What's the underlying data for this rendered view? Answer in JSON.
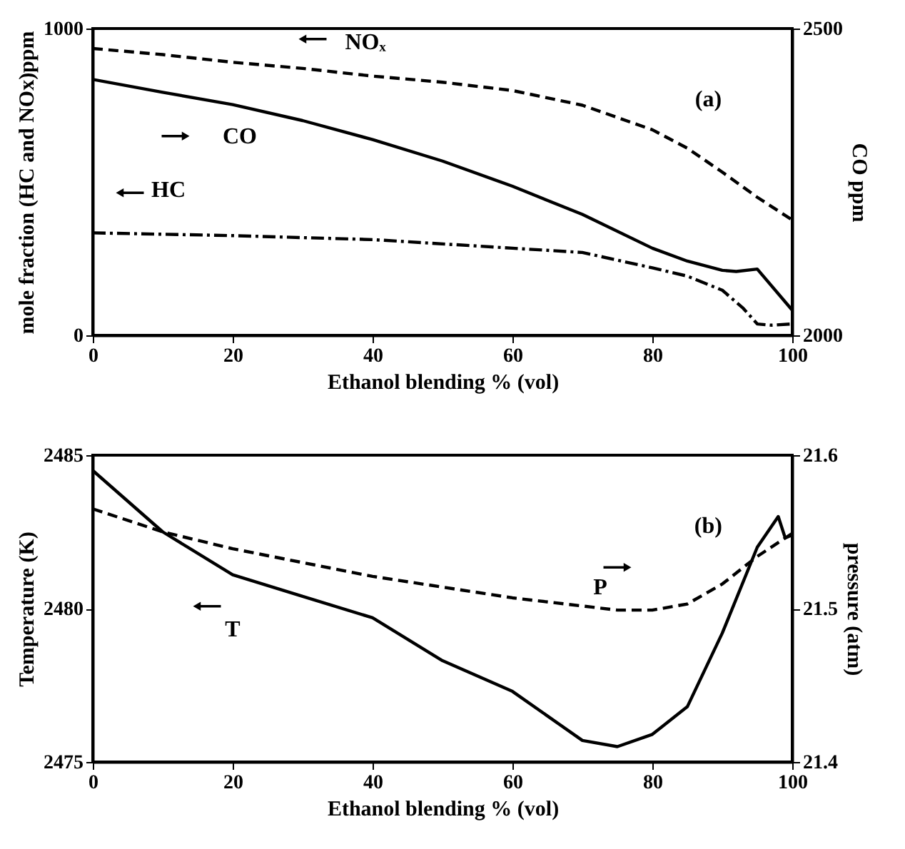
{
  "chart_data": [
    {
      "type": "line",
      "xlabel": "Ethanol blending % (vol)",
      "ylabel": "mole fraction (HC and NOx)ppm",
      "y2label": "CO ppm",
      "xlim": [
        0,
        100
      ],
      "xticks": [
        0,
        20,
        40,
        60,
        80,
        100
      ],
      "ylim": [
        0,
        1000
      ],
      "yticks": [
        0,
        1000
      ],
      "y2lim": [
        2000,
        2500
      ],
      "y2ticks": [
        2000,
        2500
      ],
      "grid": false,
      "legend": "top left",
      "series": [
        {
          "name": "NOₓ",
          "color": "#000000",
          "line_style": "dashed",
          "x": [
            0,
            10,
            20,
            30,
            40,
            50,
            60,
            70,
            80,
            85,
            90,
            95,
            100
          ],
          "values": [
            935,
            915,
            890,
            870,
            845,
            825,
            798,
            750,
            670,
            610,
            532,
            450,
            376
          ]
        },
        {
          "name": "CO",
          "color": "#000000",
          "line_style": "solid",
          "axis": "y2",
          "x": [
            0,
            10,
            20,
            30,
            40,
            50,
            60,
            70,
            80,
            85,
            90,
            92,
            95,
            100
          ],
          "values": [
            2417,
            2396,
            2376,
            2350,
            2319,
            2284,
            2243,
            2197,
            2142,
            2121,
            2106,
            2104,
            2108,
            2041
          ]
        },
        {
          "name": "HC",
          "color": "#000000",
          "line_style": "dashdot",
          "x": [
            0,
            20,
            40,
            60,
            70,
            80,
            85,
            90,
            93,
            95,
            97,
            100
          ],
          "values": [
            334,
            325,
            312,
            284,
            270,
            220,
            193,
            147,
            88,
            37,
            33,
            37
          ]
        }
      ],
      "annotations": [
        "(a)"
      ]
    },
    {
      "type": "line",
      "xlabel": "Ethanol blending % (vol)",
      "ylabel": "Temperature (K)",
      "y2label": "pressure (atm)",
      "xlim": [
        0,
        100
      ],
      "xticks": [
        0,
        20,
        40,
        60,
        80,
        100
      ],
      "ylim": [
        2475,
        2485
      ],
      "yticks": [
        2475,
        2480,
        2485
      ],
      "y2lim": [
        21.4,
        21.6
      ],
      "y2ticks": [
        21.4,
        21.5,
        21.6
      ],
      "grid": false,
      "legend": "left",
      "series": [
        {
          "name": "T",
          "color": "#000000",
          "line_style": "solid",
          "x": [
            0,
            10,
            20,
            30,
            40,
            50,
            60,
            70,
            75,
            80,
            85,
            90,
            95,
            98,
            99,
            100
          ],
          "values": [
            2484.5,
            2482.5,
            2481.1,
            2480.4,
            2479.7,
            2478.3,
            2477.3,
            2475.7,
            2475.5,
            2475.9,
            2476.8,
            2479.2,
            2482.0,
            2483.0,
            2482.3,
            2482.4
          ]
        },
        {
          "name": "P",
          "color": "#000000",
          "line_style": "dashed",
          "axis": "y2",
          "x": [
            0,
            10,
            20,
            40,
            60,
            75,
            80,
            85,
            90,
            95,
            100
          ],
          "values": [
            21.565,
            21.55,
            21.539,
            21.521,
            21.507,
            21.499,
            21.499,
            21.503,
            21.516,
            21.534,
            21.549
          ]
        }
      ],
      "annotations": [
        "(b)"
      ]
    }
  ]
}
